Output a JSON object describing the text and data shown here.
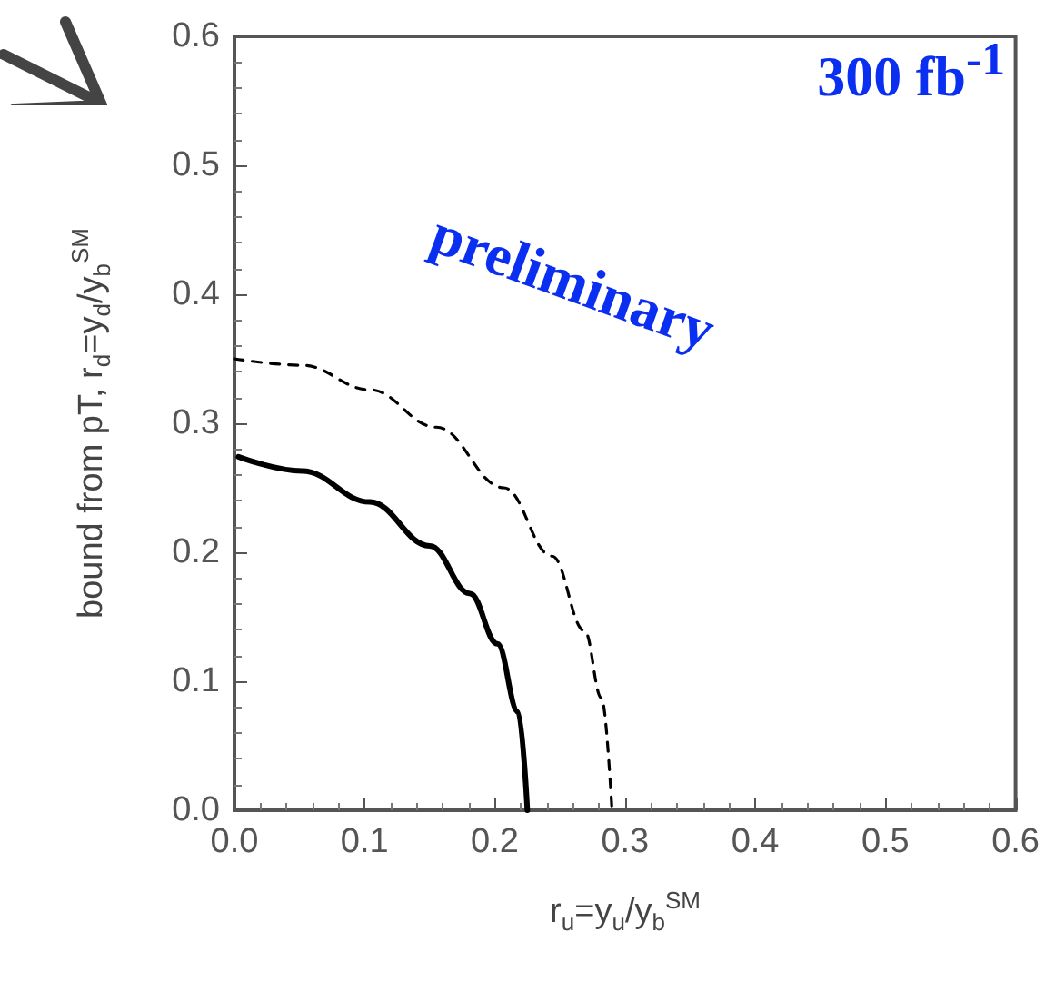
{
  "chart_data": {
    "type": "line",
    "xlabel": "r$_{u}$=y$_{u}$/y$_{b}$$^{SM}$",
    "ylabel": "bound from pT, r$_{d}$=y$_{d}$/y$_{b}$$^{SM}$",
    "annotations": [
      "300 fb$^{-1}$",
      "preliminary"
    ],
    "xlim": [
      0,
      0.6
    ],
    "ylim": [
      0,
      0.6
    ],
    "xticks": [
      {
        "value": 0,
        "label": "0.0"
      },
      0.1,
      0.2,
      0.3,
      0.4,
      0.5,
      0.6
    ],
    "yticks": [
      {
        "value": 0,
        "label": "0.0"
      },
      0.1,
      0.2,
      0.3,
      0.4,
      0.5,
      0.6
    ],
    "grid": false,
    "marker": "none",
    "series": [
      {
        "color": "#000000",
        "line_style": "solid",
        "x": [
          0.003,
          0.052,
          0.104,
          0.15,
          0.181,
          0.202,
          0.218,
          0.225
        ],
        "values": [
          0.274,
          0.263,
          0.239,
          0.205,
          0.168,
          0.129,
          0.076,
          0
        ]
      },
      {
        "color": "#000000",
        "line_style": "dashed",
        "x": [
          0,
          0.052,
          0.104,
          0.155,
          0.207,
          0.244,
          0.269,
          0.282,
          0.29
        ],
        "values": [
          0.35,
          0.345,
          0.326,
          0.297,
          0.25,
          0.197,
          0.139,
          0.087,
          0
        ]
      }
    ]
  }
}
